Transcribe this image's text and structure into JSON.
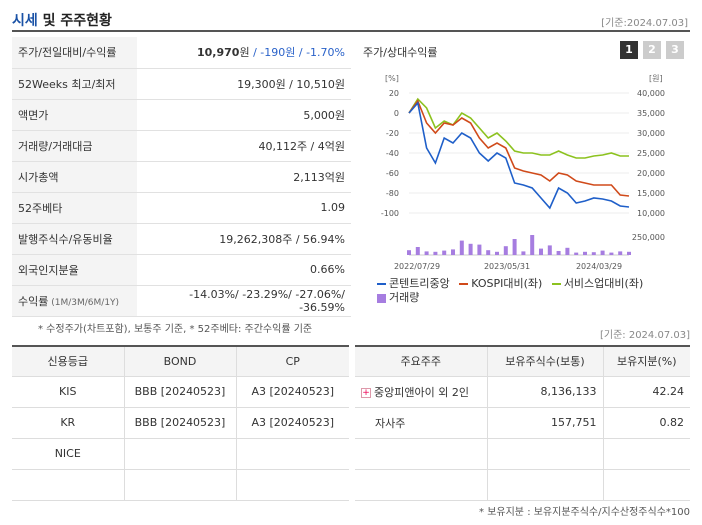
{
  "header": {
    "title_part1": "시세",
    "title_part2": " 및 주주현황",
    "date": "[기준:2024.07.03]"
  },
  "sise": [
    {
      "label": "주가/전일대비/수익률",
      "value_main": "10,970",
      "value_unit": "원",
      "value_change": " / -190원",
      "value_rate": " / -1.70%"
    },
    {
      "label": "52Weeks 최고/최저",
      "value": "19,300원 / 10,510원"
    },
    {
      "label": "액면가",
      "value": "5,000원"
    },
    {
      "label": "거래량/거래대금",
      "value": "40,112주 / 4억원"
    },
    {
      "label": "시가총액",
      "value": "2,113억원"
    },
    {
      "label": "52주베타",
      "value": "1.09"
    },
    {
      "label": "발행주식수/유동비율",
      "value": "19,262,308주 / 56.94%"
    },
    {
      "label": "외국인지분율",
      "value": "0.66%"
    },
    {
      "label": "수익률",
      "label_sub": " (1M/3M/6M/1Y)",
      "value": "-14.03%/ -23.29%/ -27.06%/ -36.59%"
    }
  ],
  "sise_note": "* 수정주가(차트포함), 보통주 기준, * 52주베타: 주간수익률 기준",
  "chart": {
    "title": "주가/상대수익률",
    "tabs": [
      "1",
      "2",
      "3"
    ],
    "left_unit": "[%]",
    "right_unit": "[원]",
    "volume_tick": "250,000",
    "legend": [
      "콘텐트리중앙",
      "KOSPI대비(좌)",
      "서비스업대비(좌)",
      "거래량"
    ]
  },
  "chart_data": {
    "type": "line",
    "x_ticks": [
      "2022/07/29",
      "2023/05/31",
      "2024/03/29"
    ],
    "y_left": {
      "ticks": [
        "20",
        "0",
        "-20",
        "-40",
        "-60",
        "-80",
        "-100"
      ],
      "range": [
        -100,
        20
      ]
    },
    "y_right": {
      "ticks": [
        "40,000",
        "35,000",
        "30,000",
        "25,000",
        "20,000",
        "15,000",
        "10,000"
      ],
      "range": [
        10000,
        40000
      ]
    },
    "series": [
      {
        "name": "콘텐트리중앙",
        "color": "#1f5fc9",
        "values": [
          0,
          10,
          -35,
          -50,
          -25,
          -30,
          -20,
          -25,
          -40,
          -48,
          -40,
          -45,
          -70,
          -72,
          -75,
          -85,
          -95,
          -75,
          -80,
          -90,
          -88,
          -85,
          -86,
          -88,
          -93,
          -94
        ]
      },
      {
        "name": "KOSPI대비(좌)",
        "color": "#d04a1a",
        "values": [
          0,
          12,
          -10,
          -20,
          -10,
          -12,
          -5,
          -10,
          -25,
          -35,
          -30,
          -35,
          -55,
          -58,
          -60,
          -62,
          -68,
          -60,
          -62,
          -68,
          -70,
          -72,
          -72,
          -72,
          -82,
          -83
        ]
      },
      {
        "name": "서비스업대비(좌)",
        "color": "#8cc21f",
        "values": [
          0,
          14,
          5,
          -15,
          -8,
          -12,
          0,
          -5,
          -15,
          -25,
          -20,
          -28,
          -38,
          -40,
          -40,
          -42,
          -42,
          -38,
          -42,
          -45,
          -45,
          -43,
          -42,
          -40,
          -43,
          -43
        ]
      },
      {
        "name": "거래량",
        "color": "#a67de0",
        "values": [
          60,
          100,
          45,
          40,
          55,
          70,
          180,
          140,
          130,
          60,
          40,
          110,
          200,
          45,
          250,
          80,
          120,
          50,
          90,
          30,
          40,
          35,
          55,
          30,
          45,
          40
        ]
      }
    ]
  },
  "credit": {
    "headers": [
      "신용등급",
      "BOND",
      "CP"
    ],
    "rows": [
      [
        "KIS",
        "BBB   [20240523]",
        "A3   [20240523]"
      ],
      [
        "KR",
        "BBB   [20240523]",
        "A3   [20240523]"
      ],
      [
        "NICE",
        "",
        ""
      ],
      [
        "",
        "",
        ""
      ]
    ]
  },
  "shareholders": {
    "date": "[기준: 2024.07.03]",
    "headers": [
      "주요주주",
      "보유주식수(보통)",
      "보유지분(%)"
    ],
    "rows": [
      {
        "name": "중앙피앤아이 외 2인",
        "shares": "8,136,133",
        "pct": "42.24",
        "expand": "+"
      },
      {
        "name": "자사주",
        "shares": "157,751",
        "pct": "0.82",
        "expand": ""
      },
      {
        "name": "",
        "shares": "",
        "pct": "",
        "expand": ""
      },
      {
        "name": "",
        "shares": "",
        "pct": "",
        "expand": ""
      }
    ],
    "note": "* 보유지분 : 보유지분주식수/지수산정주식수*100"
  }
}
